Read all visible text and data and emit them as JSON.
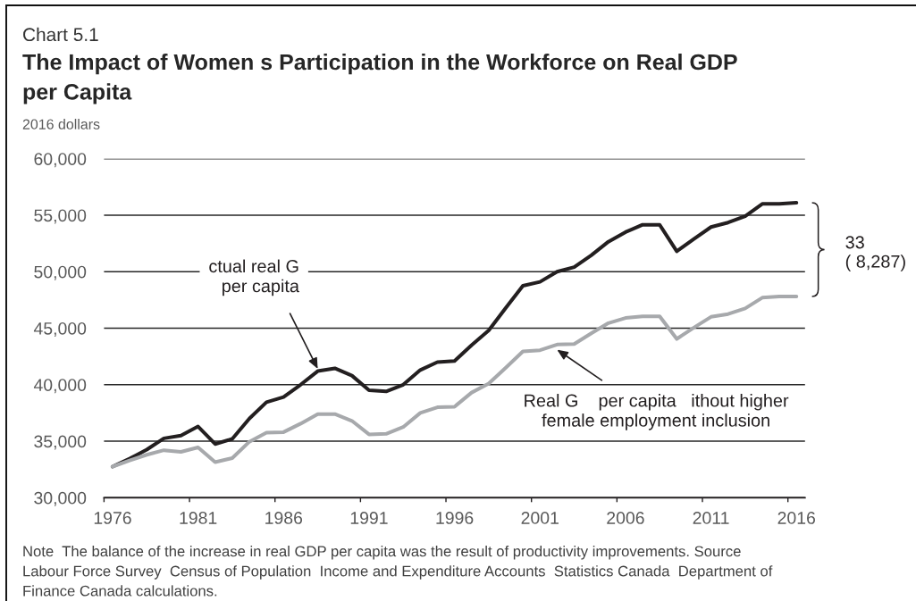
{
  "chart_data": {
    "type": "line",
    "subtitle": "Chart 5.1",
    "title": "The Impact of Women s Participation in the Workforce on Real GDP\nper Capita",
    "ylabel": "2016 dollars",
    "x": [
      1976,
      1977,
      1978,
      1979,
      1980,
      1981,
      1982,
      1983,
      1984,
      1985,
      1986,
      1987,
      1988,
      1989,
      1990,
      1991,
      1992,
      1993,
      1994,
      1995,
      1996,
      1997,
      1998,
      1999,
      2000,
      2001,
      2002,
      2003,
      2004,
      2005,
      2006,
      2007,
      2008,
      2009,
      2010,
      2011,
      2012,
      2013,
      2014,
      2015,
      2016
    ],
    "series": [
      {
        "color": "#231f20",
        "values": [
          32750,
          33450,
          34250,
          35250,
          35500,
          36300,
          34750,
          35200,
          37000,
          38450,
          38900,
          40000,
          41200,
          41450,
          40800,
          39500,
          39400,
          40000,
          41300,
          42000,
          42100,
          43500,
          44800,
          46800,
          48750,
          49100,
          50000,
          50400,
          51450,
          52650,
          53500,
          54150,
          54150,
          51800,
          52900,
          53950,
          54350,
          54900,
          56000,
          56000,
          56100
        ]
      },
      {
        "color": "#a7a9ac",
        "values": [
          32750,
          33300,
          33800,
          34200,
          34050,
          34450,
          33150,
          33500,
          34950,
          35750,
          35800,
          36550,
          37400,
          37400,
          36800,
          35600,
          35650,
          36250,
          37500,
          38000,
          38050,
          39300,
          40100,
          41500,
          42950,
          43050,
          43550,
          43600,
          44550,
          45450,
          45900,
          46050,
          46050,
          44050,
          45050,
          46000,
          46250,
          46750,
          47700,
          47800,
          47800
        ]
      }
    ],
    "xlim": [
      1975.5,
      2016.5
    ],
    "xticks": [
      {
        "value": 1975.5,
        "label": null
      },
      1976,
      {
        "value": 1980.5,
        "label": null
      },
      1981,
      {
        "value": 1985.5,
        "label": null
      },
      1986,
      {
        "value": 1990.5,
        "label": null
      },
      1991,
      {
        "value": 1995.5,
        "label": null
      },
      1996,
      {
        "value": 2000.5,
        "label": null
      },
      2001,
      {
        "value": 2005.5,
        "label": null
      },
      2006,
      {
        "value": 2010.5,
        "label": null
      },
      2011,
      {
        "value": 2015.5,
        "label": null
      },
      2016
    ],
    "ylim": [
      30000,
      60000
    ],
    "yticks": [
      {
        "value": 30000,
        "label": "30,000"
      },
      {
        "value": 35000,
        "label": "35,000"
      },
      {
        "value": 40000,
        "label": "40,000"
      },
      {
        "value": 45000,
        "label": "45,000"
      },
      {
        "value": 50000,
        "label": "50,000"
      },
      {
        "value": 55000,
        "label": "55,000"
      },
      {
        "value": 60000,
        "label": "60,000"
      }
    ],
    "grid": "y",
    "annotations": [
      {
        "text": "ctual real G\nper capita",
        "x": 1988,
        "y": 41200
      },
      {
        "text": "Real G    per capita   ithout higher\nfemale employment inclusion",
        "x": 2002,
        "y": 43100
      },
      "33\n( 8,287)",
      "Note  The balance of the increase in real GDP per capita was the result of productivity improvements. Source\nLabour Force Survey  Census of Population  Income and Expenditure Accounts  Statistics Canada  Department of\nFinance Canada calculations."
    ]
  }
}
